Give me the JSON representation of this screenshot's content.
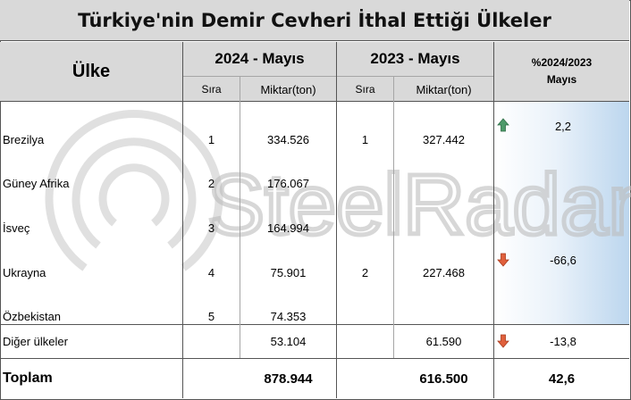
{
  "title": "Türkiye'nin Demir Cevheri İthal Ettiği Ülkeler",
  "header": {
    "country": "Ülke",
    "period_2024": "2024 - Mayıs",
    "period_2023": "2023 - Mayıs",
    "change_line1": "%2024/2023",
    "change_line2": "Mayıs",
    "rank": "Sıra",
    "amount": "Miktar(ton)"
  },
  "rows": [
    {
      "country": "Brezilya",
      "rank_2024": "1",
      "amount_2024": "334.526",
      "rank_2023": "1",
      "amount_2023": "327.442",
      "change": "2,2",
      "trend": "up"
    },
    {
      "country": "Güney Afrika",
      "rank_2024": "2",
      "amount_2024": "176.067",
      "rank_2023": "",
      "amount_2023": "",
      "change": "",
      "trend": ""
    },
    {
      "country": "İsveç",
      "rank_2024": "3",
      "amount_2024": "164.994",
      "rank_2023": "",
      "amount_2023": "",
      "change": "",
      "trend": ""
    },
    {
      "country": "Ukrayna",
      "rank_2024": "4",
      "amount_2024": "75.901",
      "rank_2023": "2",
      "amount_2023": "227.468",
      "change": "-66,6",
      "trend": "down"
    },
    {
      "country": "Özbekistan",
      "rank_2024": "5",
      "amount_2024": "74.353",
      "rank_2023": "",
      "amount_2023": "",
      "change": "",
      "trend": ""
    }
  ],
  "others": {
    "country": "Diğer ülkeler",
    "amount_2024": "53.104",
    "amount_2023": "61.590",
    "change": "-13,8",
    "trend": "down"
  },
  "total": {
    "label": "Toplam",
    "amount_2024": "878.944",
    "amount_2023": "616.500",
    "change": "42,6"
  },
  "watermark": "SteelRadar",
  "colors": {
    "header_bg": "#d9d9d9",
    "up_arrow": "#4e9a6a",
    "down_arrow": "#e0603c",
    "watermark": "#c8c8c8"
  }
}
